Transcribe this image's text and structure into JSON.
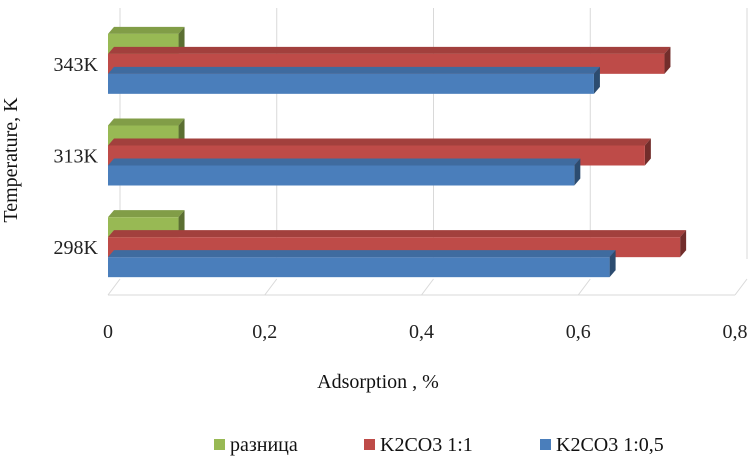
{
  "chart_data": {
    "type": "bar",
    "orientation": "horizontal",
    "style": "3d-clustered",
    "categories": [
      "298K",
      "313K",
      "343K"
    ],
    "series": [
      {
        "name": "K2CO3 1:0,5",
        "values": [
          0.64,
          0.595,
          0.62
        ],
        "color": "#4a7ebb"
      },
      {
        "name": "K2CO3 1:1",
        "values": [
          0.73,
          0.685,
          0.71
        ],
        "color": "#be4b48"
      },
      {
        "name": "разница",
        "values": [
          0.09,
          0.09,
          0.09
        ],
        "color": "#98b954"
      }
    ],
    "legend_order": [
      "разница",
      "K2CO3 1:1",
      "K2CO3 1:0,5"
    ],
    "xlabel": "Adsorption , %",
    "ylabel": "Temperature, K",
    "xlim": [
      0,
      0.8
    ],
    "xticks": [
      "0",
      "0,2",
      "0,4",
      "0,6",
      "0,8"
    ],
    "xtick_values": [
      0,
      0.2,
      0.4,
      0.6,
      0.8
    ],
    "grid": true,
    "legend_position": "bottom"
  }
}
